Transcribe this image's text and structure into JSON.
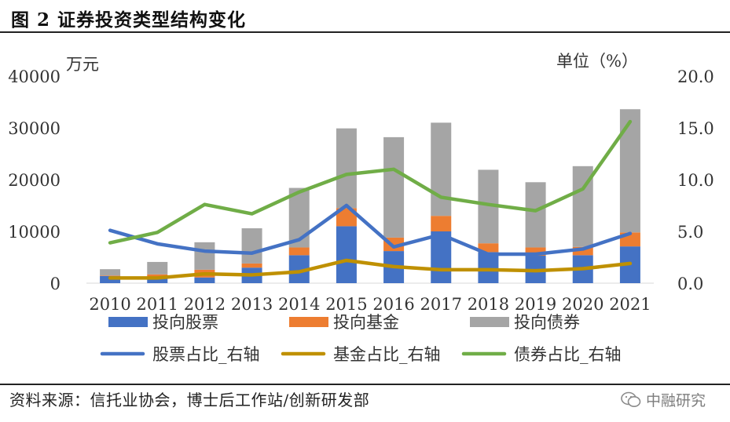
{
  "figure": {
    "title": "图 2  证券投资类型结构变化",
    "source": "资料来源：信托业协会，博士后工作站/创新研发部",
    "watermark": "中融研究",
    "watermark_icon": "wechat-icon"
  },
  "chart_data": {
    "type": "bar",
    "stacked": true,
    "title": "证券投资类型结构变化",
    "left_unit": "万元",
    "right_unit": "单位（%）",
    "categories": [
      "2010",
      "2011",
      "2012",
      "2013",
      "2014",
      "2015",
      "2016",
      "2017",
      "2018",
      "2019",
      "2020",
      "2021"
    ],
    "y_left": {
      "min": 0,
      "max": 40000,
      "ticks": [
        "0",
        "10000",
        "20000",
        "30000",
        "40000"
      ]
    },
    "y_right": {
      "min": 0,
      "max": 20,
      "ticks": [
        "0.0",
        "5.0",
        "10.0",
        "15.0",
        "20.0"
      ]
    },
    "bar_series": [
      {
        "name": "投向股票",
        "color": "#4472C4",
        "values": [
          1400,
          1000,
          1100,
          3000,
          5400,
          11000,
          6200,
          10000,
          6000,
          5300,
          5400,
          7100
        ]
      },
      {
        "name": "投向基金",
        "color": "#ED7D31",
        "values": [
          100,
          700,
          1500,
          800,
          1500,
          3500,
          2600,
          3000,
          1700,
          1600,
          1600,
          2700
        ]
      },
      {
        "name": "投向债券",
        "color": "#A5A5A5",
        "values": [
          1200,
          2400,
          5300,
          6800,
          11500,
          15400,
          19400,
          18000,
          14200,
          12600,
          15600,
          23800
        ]
      }
    ],
    "line_series": [
      {
        "name": "股票占比_右轴",
        "color": "#4472C4",
        "values": [
          5.1,
          3.8,
          3.1,
          2.9,
          4.2,
          7.5,
          3.5,
          4.7,
          2.8,
          2.8,
          3.3,
          4.8
        ]
      },
      {
        "name": "基金占比_右轴",
        "color": "#BF9000",
        "values": [
          0.5,
          0.5,
          0.9,
          0.8,
          1.1,
          2.2,
          1.6,
          1.3,
          1.3,
          1.2,
          1.4,
          1.9
        ]
      },
      {
        "name": "债券占比_右轴",
        "color": "#70AD47",
        "values": [
          3.9,
          4.9,
          7.6,
          6.7,
          8.8,
          10.5,
          11.0,
          8.3,
          7.6,
          7.0,
          9.1,
          15.6
        ]
      }
    ],
    "legend": [
      {
        "label": "投向股票",
        "kind": "bar",
        "color": "#4472C4"
      },
      {
        "label": "投向基金",
        "kind": "bar",
        "color": "#ED7D31"
      },
      {
        "label": "投向债券",
        "kind": "bar",
        "color": "#A5A5A5"
      },
      {
        "label": "股票占比_右轴",
        "kind": "line",
        "color": "#4472C4"
      },
      {
        "label": "基金占比_右轴",
        "kind": "line",
        "color": "#BF9000"
      },
      {
        "label": "债券占比_右轴",
        "kind": "line",
        "color": "#70AD47"
      }
    ]
  }
}
